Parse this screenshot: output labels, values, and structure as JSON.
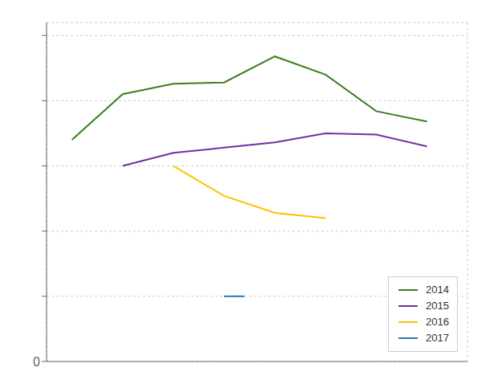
{
  "chart_data": {
    "type": "line",
    "series": [
      {
        "name": "2014",
        "color": "#3d7d20",
        "x": [
          2013,
          2014,
          2015,
          2016,
          2017,
          2018,
          2019,
          2020
        ],
        "values": [
          170,
          205,
          213,
          214,
          234,
          220,
          192,
          184
        ]
      },
      {
        "name": "2015",
        "color": "#7030a0",
        "x": [
          2014,
          2015,
          2016,
          2017,
          2018,
          2019,
          2020
        ],
        "values": [
          150,
          160,
          164,
          168,
          175,
          174,
          165
        ]
      },
      {
        "name": "2016",
        "color": "#ffc000",
        "x": [
          2015,
          2016,
          2017,
          2018
        ],
        "values": [
          150,
          127,
          114,
          110
        ]
      },
      {
        "name": "2017",
        "color": "#2e75b6",
        "x": [
          2016,
          2016.4
        ],
        "values": [
          50,
          50
        ]
      }
    ],
    "xlim": [
      2012.5,
      2020.8
    ],
    "xticks": [
      2013,
      2014,
      2015,
      2016,
      2017,
      2018,
      2019,
      2020
    ],
    "ylim": [
      0,
      260
    ],
    "yticks": [
      0,
      {
        "value": 50,
        "label": null
      },
      {
        "value": 100,
        "label": null
      },
      {
        "value": 150,
        "label": null
      },
      {
        "value": 200,
        "label": null
      },
      {
        "value": 250,
        "label": null
      }
    ],
    "grid": true,
    "legend": "lower right",
    "tick_labels": "y"
  }
}
